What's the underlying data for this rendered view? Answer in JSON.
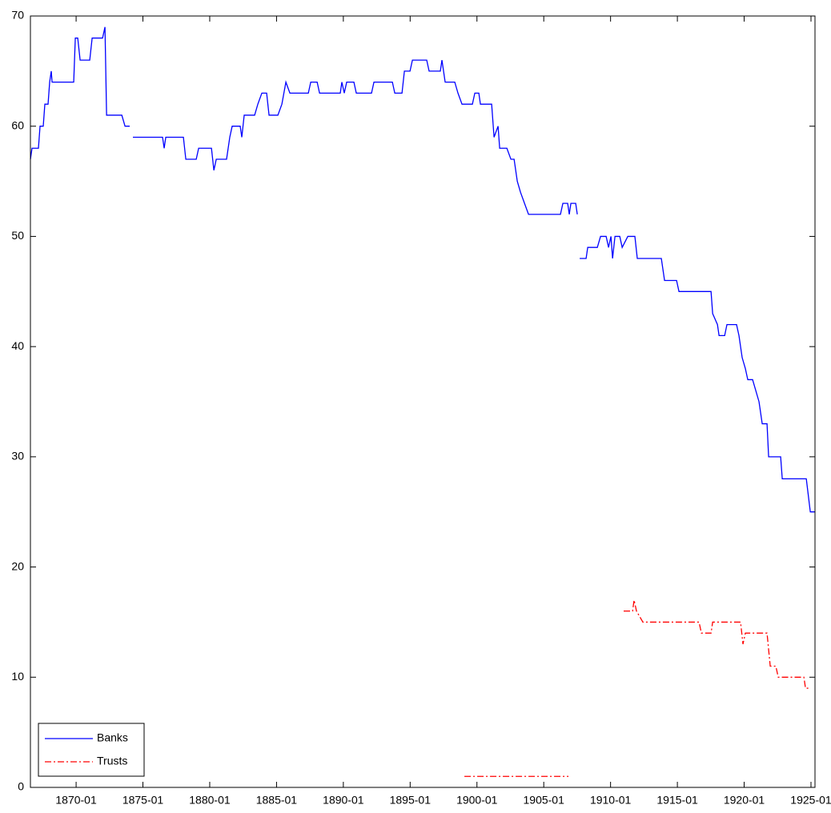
{
  "chart_data": {
    "type": "line",
    "xlim": [
      1866.58,
      1925.3
    ],
    "ylim": [
      0,
      70
    ],
    "yticks": [
      0,
      10,
      20,
      30,
      40,
      50,
      60,
      70
    ],
    "xticks": [
      {
        "value": 1870,
        "label": "1870-01"
      },
      {
        "value": 1875,
        "label": "1875-01"
      },
      {
        "value": 1880,
        "label": "1880-01"
      },
      {
        "value": 1885,
        "label": "1885-01"
      },
      {
        "value": 1890,
        "label": "1890-01"
      },
      {
        "value": 1895,
        "label": "1895-01"
      },
      {
        "value": 1900,
        "label": "1900-01"
      },
      {
        "value": 1905,
        "label": "1905-01"
      },
      {
        "value": 1910,
        "label": "1910-01"
      },
      {
        "value": 1915,
        "label": "1915-01"
      },
      {
        "value": 1920,
        "label": "1920-01"
      },
      {
        "value": 1925,
        "label": "1925-01"
      }
    ],
    "grid": false,
    "legend": "lower-left",
    "series": [
      {
        "name": "Banks",
        "color": "#0000ff",
        "line_style": "solid",
        "x": [
          1866.58,
          1866.7,
          1867.18,
          1867.3,
          1867.54,
          1867.66,
          1867.9,
          1868.02,
          1868.14,
          1868.2,
          1869.82,
          1869.94,
          1870.12,
          1870.3,
          1871.02,
          1871.2,
          1871.98,
          1872.16,
          1872.28,
          1873.42,
          1873.66,
          1874.01,
          1874.13,
          1874.25,
          1876.47,
          1876.59,
          1876.71,
          1878.03,
          1878.21,
          1878.99,
          1879.17,
          1880.13,
          1880.31,
          1880.49,
          1881.26,
          1881.5,
          1881.68,
          1882.28,
          1882.4,
          1882.58,
          1883.36,
          1883.6,
          1883.9,
          1884.26,
          1884.44,
          1885.1,
          1885.4,
          1885.7,
          1886,
          1887.38,
          1887.56,
          1888.04,
          1888.22,
          1889.77,
          1889.89,
          1890.07,
          1890.25,
          1890.79,
          1890.97,
          1892.11,
          1892.29,
          1893.67,
          1893.85,
          1894.39,
          1894.57,
          1894.99,
          1895.17,
          1896.24,
          1896.42,
          1897.26,
          1897.38,
          1897.5,
          1897.62,
          1898.34,
          1898.58,
          1898.88,
          1899.66,
          1899.84,
          1900.14,
          1900.26,
          1901.1,
          1901.28,
          1901.58,
          1901.7,
          1902.24,
          1902.54,
          1902.78,
          1903.02,
          1903.26,
          1903.56,
          1903.86,
          1906.25,
          1906.43,
          1906.79,
          1906.91,
          1907.03,
          1907.39,
          1907.51,
          1907.6,
          1907.69,
          1908.17,
          1908.29,
          1909.01,
          1909.25,
          1909.67,
          1909.85,
          1910.03,
          1910.15,
          1910.33,
          1910.69,
          1910.87,
          1911.29,
          1911.82,
          1912,
          1913.8,
          1913.92,
          1914.04,
          1914.94,
          1915.12,
          1917.52,
          1917.64,
          1918,
          1918.12,
          1918.54,
          1918.71,
          1919.43,
          1919.61,
          1919.85,
          1920.09,
          1920.27,
          1920.63,
          1920.87,
          1921.11,
          1921.35,
          1921.71,
          1921.83,
          1922.73,
          1922.85,
          1924.65,
          1924.95,
          1925.3
        ],
        "values": [
          57,
          58,
          58,
          60,
          60,
          62,
          62,
          64,
          65,
          64,
          64,
          68,
          68,
          66,
          66,
          68,
          68,
          69,
          61,
          61,
          60,
          60,
          null,
          59,
          59,
          58,
          59,
          59,
          57,
          57,
          58,
          58,
          56,
          57,
          57,
          59,
          60,
          60,
          59,
          61,
          61,
          62,
          63,
          63,
          61,
          61,
          62,
          64,
          63,
          63,
          64,
          64,
          63,
          63,
          64,
          63,
          64,
          64,
          63,
          63,
          64,
          64,
          63,
          63,
          65,
          65,
          66,
          66,
          65,
          65,
          66,
          65,
          64,
          64,
          63,
          62,
          62,
          63,
          63,
          62,
          62,
          59,
          60,
          58,
          58,
          57,
          57,
          55,
          54,
          53,
          52,
          52,
          53,
          53,
          52,
          53,
          53,
          52,
          null,
          48,
          48,
          49,
          49,
          50,
          50,
          49,
          50,
          48,
          50,
          50,
          49,
          50,
          50,
          48,
          48,
          47,
          46,
          46,
          45,
          45,
          43,
          42,
          41,
          41,
          42,
          42,
          41,
          39,
          38,
          37,
          37,
          36,
          35,
          33,
          33,
          30,
          30,
          28,
          28,
          25,
          25
        ]
      },
      {
        "name": "Trusts",
        "color": "#ff0000",
        "line_style": "dashdot",
        "x": [
          1899.06,
          1906.85,
          1908.9,
          1910.98,
          1911.65,
          1911.76,
          1911.94,
          1912.42,
          1916.62,
          1916.8,
          1917.52,
          1917.64,
          1919.73,
          1919.91,
          1920.09,
          1921.71,
          1921.95,
          1922.37,
          1922.55,
          1924.47,
          1924.59,
          1924.95
        ],
        "values": [
          1,
          1,
          null,
          16,
          16,
          17,
          16,
          15,
          15,
          14,
          14,
          15,
          15,
          13,
          14,
          14,
          11,
          11,
          10,
          10,
          9,
          9
        ]
      }
    ]
  }
}
